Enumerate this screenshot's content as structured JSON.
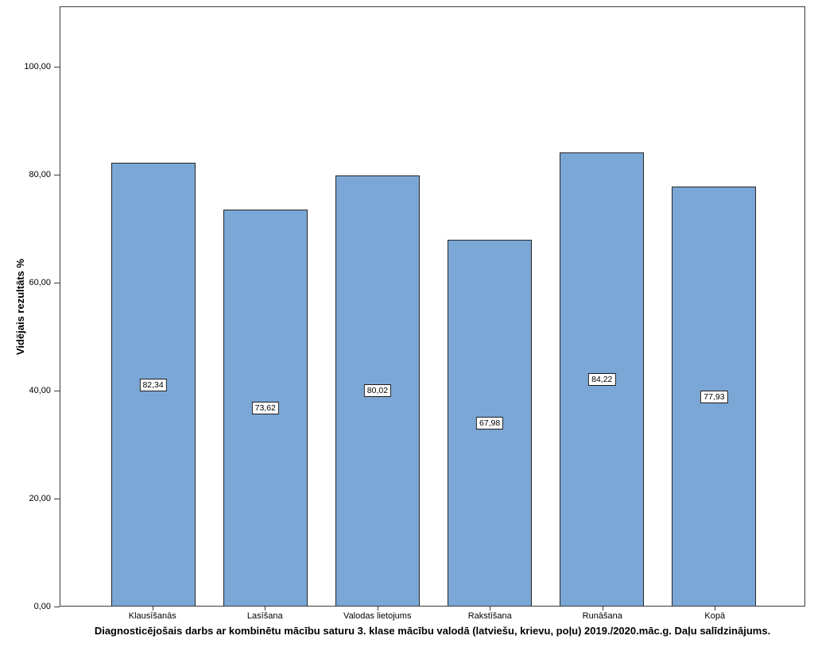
{
  "chart_data": {
    "type": "bar",
    "categories": [
      "Klausīšanās",
      "Lasīšana",
      "Valodas lietojums",
      "Rakstīšana",
      "Runāšana",
      "Kopā"
    ],
    "values": [
      82.34,
      73.62,
      80.02,
      67.98,
      84.22,
      77.93
    ],
    "value_labels": [
      "82,34",
      "73,62",
      "80,02",
      "67,98",
      "84,22",
      "77,93"
    ],
    "title": "",
    "xlabel": "",
    "ylabel": "Vidējais rezultāts %",
    "caption": "Diagnosticējošais darbs ar kombinētu mācību saturu 3. klase mācību valodā (latviešu, krievu, poļu) 2019./2020.māc.g. Daļu salīdzinājums.",
    "y_ticks": [
      {
        "value": 0,
        "label": "0,00"
      },
      {
        "value": 20,
        "label": "20,00"
      },
      {
        "value": 40,
        "label": "40,00"
      },
      {
        "value": 60,
        "label": "60,00"
      },
      {
        "value": 80,
        "label": "80,00"
      },
      {
        "value": 100,
        "label": "100,00"
      }
    ],
    "ylim": [
      0,
      111.3
    ],
    "grid": false,
    "legend": "none",
    "bar_color": "#7BA7D6",
    "bar_border_color": "#262626",
    "axis_color": "#3a3a3a"
  }
}
